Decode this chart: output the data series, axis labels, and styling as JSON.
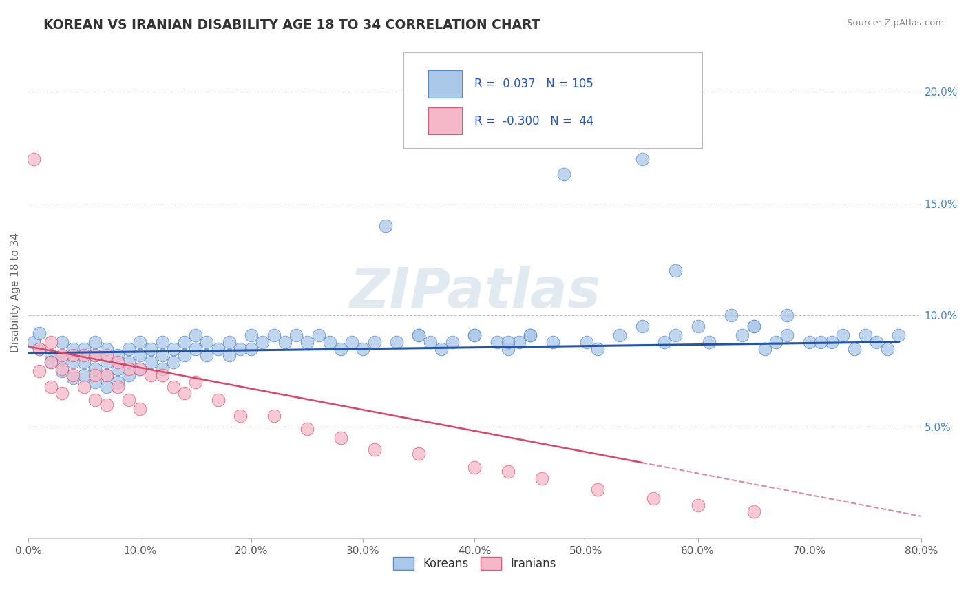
{
  "title": "KOREAN VS IRANIAN DISABILITY AGE 18 TO 34 CORRELATION CHART",
  "source": "Source: ZipAtlas.com",
  "ylabel": "Disability Age 18 to 34",
  "xlim": [
    0.0,
    0.8
  ],
  "ylim": [
    0.0,
    0.22
  ],
  "xtick_labels": [
    "0.0%",
    "",
    "10.0%",
    "",
    "20.0%",
    "",
    "30.0%",
    "",
    "40.0%",
    "",
    "50.0%",
    "",
    "60.0%",
    "",
    "70.0%",
    "",
    "80.0%"
  ],
  "xtick_vals": [
    0.0,
    0.05,
    0.1,
    0.15,
    0.2,
    0.25,
    0.3,
    0.35,
    0.4,
    0.45,
    0.5,
    0.55,
    0.6,
    0.65,
    0.7,
    0.75,
    0.8
  ],
  "ytick_labels": [
    "5.0%",
    "10.0%",
    "15.0%",
    "20.0%"
  ],
  "ytick_vals": [
    0.05,
    0.1,
    0.15,
    0.2
  ],
  "korean_color": "#aac8e8",
  "iranian_color": "#f5b8c8",
  "korean_edge": "#5588cc",
  "iranian_edge": "#e05878",
  "legend_R_korean": "0.037",
  "legend_N_korean": "105",
  "legend_R_iranian": "-0.300",
  "legend_N_iranian": "44",
  "korean_x": [
    0.005,
    0.01,
    0.01,
    0.02,
    0.02,
    0.03,
    0.03,
    0.03,
    0.04,
    0.04,
    0.04,
    0.05,
    0.05,
    0.05,
    0.06,
    0.06,
    0.06,
    0.06,
    0.07,
    0.07,
    0.07,
    0.07,
    0.08,
    0.08,
    0.08,
    0.09,
    0.09,
    0.09,
    0.1,
    0.1,
    0.1,
    0.11,
    0.11,
    0.12,
    0.12,
    0.12,
    0.13,
    0.13,
    0.14,
    0.14,
    0.15,
    0.15,
    0.16,
    0.16,
    0.17,
    0.18,
    0.18,
    0.19,
    0.2,
    0.2,
    0.21,
    0.22,
    0.23,
    0.24,
    0.25,
    0.26,
    0.27,
    0.28,
    0.29,
    0.3,
    0.31,
    0.32,
    0.33,
    0.35,
    0.36,
    0.37,
    0.38,
    0.4,
    0.42,
    0.43,
    0.44,
    0.45,
    0.47,
    0.48,
    0.5,
    0.51,
    0.53,
    0.55,
    0.57,
    0.58,
    0.6,
    0.61,
    0.63,
    0.64,
    0.65,
    0.66,
    0.67,
    0.68,
    0.7,
    0.72,
    0.73,
    0.74,
    0.75,
    0.76,
    0.77,
    0.78,
    0.55,
    0.58,
    0.43,
    0.65,
    0.68,
    0.71,
    0.35,
    0.4,
    0.45
  ],
  "korean_y": [
    0.088,
    0.092,
    0.085,
    0.082,
    0.079,
    0.088,
    0.081,
    0.075,
    0.085,
    0.079,
    0.072,
    0.085,
    0.079,
    0.073,
    0.088,
    0.082,
    0.076,
    0.07,
    0.085,
    0.079,
    0.073,
    0.068,
    0.082,
    0.076,
    0.07,
    0.085,
    0.079,
    0.073,
    0.088,
    0.082,
    0.076,
    0.085,
    0.079,
    0.088,
    0.082,
    0.076,
    0.085,
    0.079,
    0.088,
    0.082,
    0.091,
    0.085,
    0.088,
    0.082,
    0.085,
    0.088,
    0.082,
    0.085,
    0.091,
    0.085,
    0.088,
    0.091,
    0.088,
    0.091,
    0.088,
    0.091,
    0.088,
    0.085,
    0.088,
    0.085,
    0.088,
    0.14,
    0.088,
    0.091,
    0.088,
    0.085,
    0.088,
    0.091,
    0.088,
    0.085,
    0.088,
    0.091,
    0.088,
    0.163,
    0.088,
    0.085,
    0.091,
    0.17,
    0.088,
    0.091,
    0.095,
    0.088,
    0.1,
    0.091,
    0.095,
    0.085,
    0.088,
    0.091,
    0.088,
    0.088,
    0.091,
    0.085,
    0.091,
    0.088,
    0.085,
    0.091,
    0.095,
    0.12,
    0.088,
    0.095,
    0.1,
    0.088,
    0.091,
    0.091,
    0.091
  ],
  "iranian_x": [
    0.005,
    0.01,
    0.01,
    0.02,
    0.02,
    0.02,
    0.03,
    0.03,
    0.03,
    0.04,
    0.04,
    0.05,
    0.05,
    0.06,
    0.06,
    0.06,
    0.07,
    0.07,
    0.07,
    0.08,
    0.08,
    0.09,
    0.09,
    0.1,
    0.1,
    0.11,
    0.12,
    0.13,
    0.14,
    0.15,
    0.17,
    0.19,
    0.22,
    0.25,
    0.28,
    0.31,
    0.35,
    0.4,
    0.43,
    0.46,
    0.51,
    0.56,
    0.6,
    0.65
  ],
  "iranian_y": [
    0.17,
    0.085,
    0.075,
    0.088,
    0.079,
    0.068,
    0.082,
    0.076,
    0.065,
    0.082,
    0.073,
    0.082,
    0.068,
    0.082,
    0.073,
    0.062,
    0.082,
    0.073,
    0.06,
    0.079,
    0.068,
    0.076,
    0.062,
    0.076,
    0.058,
    0.073,
    0.073,
    0.068,
    0.065,
    0.07,
    0.062,
    0.055,
    0.055,
    0.049,
    0.045,
    0.04,
    0.038,
    0.032,
    0.03,
    0.027,
    0.022,
    0.018,
    0.015,
    0.012
  ],
  "background_color": "#ffffff",
  "grid_color": "#cccccc",
  "watermark_text": "ZIPatlas",
  "watermark_color": "#d0dde8",
  "korean_trendline_color": "#2255aa",
  "iranian_trendline_color": "#dd4466",
  "iranian_dashed_color": "#dd88aa"
}
